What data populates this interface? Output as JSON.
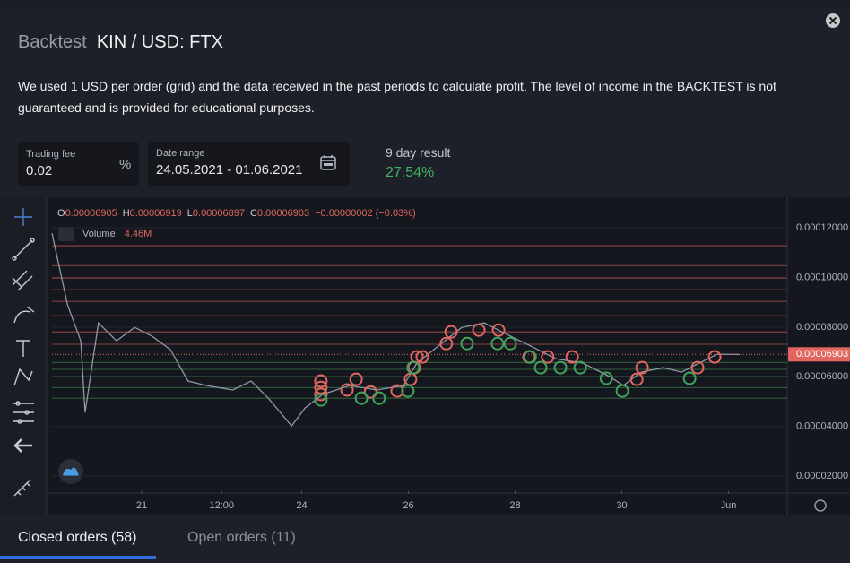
{
  "header": {
    "label": "Backtest",
    "title": "KIN / USD: FTX"
  },
  "description": "We used 1 USD per order (grid) and the data received in the past periods to calculate profit. The level of income in the BACKTEST is not guaranteed and is provided for educational purposes.",
  "fields": {
    "trading_fee": {
      "label": "Trading fee",
      "value": "0.02",
      "unit": "%"
    },
    "date_range": {
      "label": "Date range",
      "value": "24.05.2021 - 01.06.2021"
    },
    "result": {
      "label": "9 day result",
      "value": "27.54%"
    }
  },
  "legend": {
    "o_label": "O",
    "o": "0.00006905",
    "h_label": "H",
    "h": "0.00006919",
    "l_label": "L",
    "l": "0.00006897",
    "c_label": "C",
    "c": "0.00006903",
    "change": "−0.00000002 (−0.03%)",
    "volume_label": "Volume",
    "volume": "4.46M"
  },
  "chart_data": {
    "type": "line",
    "xlim": [
      19.32,
      33.1
    ],
    "xticks": [
      {
        "value": 21,
        "label": "21"
      },
      {
        "value": 22.5,
        "label": "12:00"
      },
      {
        "value": 24,
        "label": "24"
      },
      {
        "value": 26,
        "label": "26"
      },
      {
        "value": 28,
        "label": "28"
      },
      {
        "value": 30,
        "label": "30"
      },
      {
        "value": 32,
        "label": "Jun"
      }
    ],
    "ylim": [
      1.39e-05,
      0.0001316
    ],
    "yticks": [
      {
        "value": 0.00012,
        "label": "0.00012000"
      },
      {
        "value": 0.0001,
        "label": "0.00010000"
      },
      {
        "value": 8e-05,
        "label": "0.00008000"
      },
      {
        "value": 6e-05,
        "label": "0.00006000"
      },
      {
        "value": 4e-05,
        "label": "0.00004000"
      },
      {
        "value": 2e-05,
        "label": "0.00002000"
      }
    ],
    "last_price": {
      "value": 6.903e-05,
      "label": "0.00006903"
    },
    "grid_levels": {
      "sell": {
        "color": "#b5514f",
        "values": [
          0.0001128,
          0.0001048,
          9.98e-05,
          9.51e-05,
          9.04e-05,
          8.46e-05,
          7.81e-05,
          7.31e-05
        ]
      },
      "buy": {
        "color": "#3f7d4a",
        "values": [
          6.58e-05,
          6.3e-05,
          6.01e-05,
          5.57e-05,
          5.14e-05
        ]
      }
    },
    "price": {
      "color": "#8f98a6",
      "x": [
        19.32,
        19.61,
        19.86,
        19.94,
        20.19,
        20.53,
        20.87,
        21.2,
        21.54,
        21.87,
        22.21,
        22.71,
        23.05,
        23.39,
        23.81,
        24.06,
        24.39,
        24.9,
        25.4,
        25.91,
        26.16,
        26.58,
        27.0,
        27.42,
        27.92,
        28.26,
        28.76,
        29.27,
        29.77,
        30.03,
        30.36,
        30.78,
        31.12,
        31.45,
        31.79,
        32.21
      ],
      "values": [
        0.0001178,
        8.9e-05,
        7.45e-05,
        4.56e-05,
        8.17e-05,
        7.45e-05,
        7.99e-05,
        7.63e-05,
        7.09e-05,
        5.83e-05,
        5.65e-05,
        5.47e-05,
        5.83e-05,
        5.1e-05,
        4.02e-05,
        4.74e-05,
        5.29e-05,
        5.65e-05,
        5.47e-05,
        5.65e-05,
        6.55e-05,
        7.27e-05,
        7.99e-05,
        8.17e-05,
        7.63e-05,
        7.27e-05,
        6.73e-05,
        6.55e-05,
        6.01e-05,
        5.65e-05,
        6.19e-05,
        6.37e-05,
        6.19e-05,
        6.55e-05,
        6.91e-05,
        6.9e-05
      ]
    },
    "sells": {
      "color": "#e0665f",
      "x": [
        24.36,
        24.36,
        24.36,
        24.85,
        25.02,
        25.29,
        25.79,
        26.04,
        26.11,
        26.16,
        26.26,
        26.71,
        26.8,
        27.32,
        27.69,
        28.26,
        28.61,
        29.07,
        30.28,
        30.38,
        31.42,
        31.74
      ],
      "values": [
        5.83e-05,
        5.57e-05,
        5.29e-05,
        5.47e-05,
        5.9e-05,
        5.39e-05,
        5.43e-05,
        5.9e-05,
        6.37e-05,
        6.8e-05,
        6.8e-05,
        7.34e-05,
        7.81e-05,
        7.88e-05,
        7.88e-05,
        6.8e-05,
        6.8e-05,
        6.8e-05,
        5.9e-05,
        6.37e-05,
        6.37e-05,
        6.8e-05
      ]
    },
    "buys": {
      "color": "#3fa45a",
      "x": [
        24.36,
        25.12,
        25.45,
        25.99,
        26.09,
        27.1,
        27.67,
        27.91,
        28.28,
        28.48,
        28.85,
        29.22,
        29.71,
        30.01,
        31.27
      ],
      "values": [
        5.07e-05,
        5.14e-05,
        5.14e-05,
        5.43e-05,
        6.37e-05,
        7.34e-05,
        7.34e-05,
        7.34e-05,
        6.8e-05,
        6.37e-05,
        6.37e-05,
        6.37e-05,
        5.94e-05,
        5.43e-05,
        5.94e-05
      ]
    }
  },
  "tabs": {
    "closed": "Closed orders (58)",
    "open": "Open orders (11)"
  }
}
